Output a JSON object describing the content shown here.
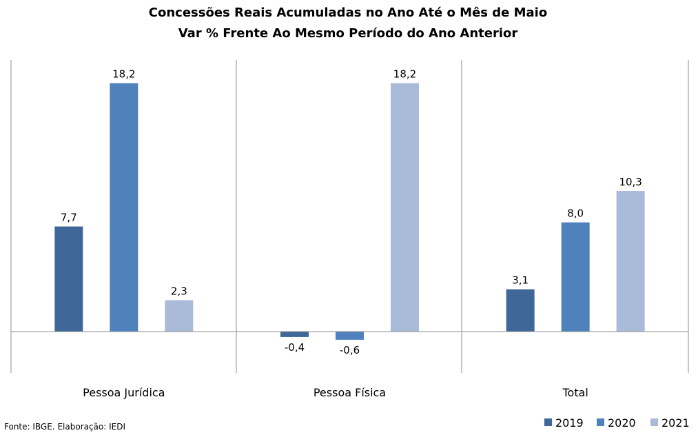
{
  "chart_data": {
    "type": "bar",
    "title": "Concessões Reais Acumuladas no Ano Até o Mês de Maio",
    "subtitle": "Var % Frente Ao Mesmo Período do Ano Anterior",
    "categories": [
      "Pessoa Jurídica",
      "Pessoa Física",
      "Total"
    ],
    "series": [
      {
        "name": "2019",
        "color": "#3f6899",
        "values": [
          7.7,
          -0.4,
          3.1
        ],
        "labels": [
          "7,7",
          "-0,4",
          "3,1"
        ]
      },
      {
        "name": "2020",
        "color": "#4f81bd",
        "values": [
          18.2,
          -0.6,
          8.0
        ],
        "labels": [
          "18,2",
          "-0,6",
          "8,0"
        ]
      },
      {
        "name": "2021",
        "color": "#a9bbd8",
        "values": [
          2.3,
          18.2,
          10.3
        ],
        "labels": [
          "2,3",
          "18,2",
          "10,3"
        ]
      }
    ],
    "ylim": [
      -3.0,
      20.0
    ],
    "grid": false,
    "legend": "bottom-right",
    "source": "Fonte: IBGE. Elaboração: IEDI"
  }
}
